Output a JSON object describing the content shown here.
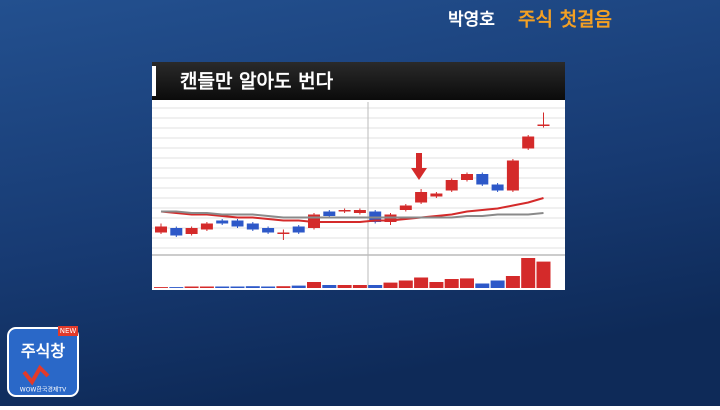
{
  "header": {
    "host": "박영호",
    "program": "주식 첫걸음"
  },
  "logo": {
    "badge": "NEW",
    "name": "주식창",
    "channel": "WOW한국경제TV"
  },
  "chart_data": {
    "type": "candlestick",
    "title": "캔들만 알아도 번다",
    "open": [
      15,
      18,
      14,
      17,
      23,
      23,
      21,
      18,
      14,
      19,
      18,
      29,
      29,
      28,
      29,
      22,
      30,
      35,
      39,
      43,
      50,
      54,
      47,
      43,
      71,
      86
    ],
    "high": [
      21,
      19,
      19,
      22,
      24,
      24,
      22,
      19,
      17,
      20,
      28,
      30,
      31,
      31,
      30,
      28,
      34,
      44,
      42,
      51,
      55,
      55,
      48,
      64,
      80,
      95
    ],
    "low": [
      14,
      12,
      13,
      16,
      20,
      18,
      16,
      14,
      10,
      14,
      17,
      25,
      28,
      27,
      21,
      20,
      29,
      34,
      38,
      42,
      49,
      46,
      42,
      42,
      70,
      85
    ],
    "close": [
      19,
      13,
      18,
      21,
      21,
      19,
      17,
      15,
      15,
      15,
      27,
      26,
      30,
      30,
      22,
      27,
      33,
      42,
      41,
      50,
      54,
      47,
      43,
      63,
      79,
      87
    ],
    "volume": [
      3,
      3,
      5,
      5,
      5,
      5,
      6,
      5,
      6,
      8,
      20,
      10,
      10,
      10,
      10,
      18,
      25,
      35,
      20,
      30,
      32,
      15,
      25,
      40,
      100,
      88
    ],
    "ylim": [
      0,
      100
    ],
    "volume_ylim": [
      0,
      100
    ],
    "up_color": "#d42a2a",
    "down_color": "#2d58c8",
    "moving_averages": [
      {
        "color": "#d42a2a",
        "values": [
          29,
          28,
          27,
          27,
          26,
          25,
          25,
          24,
          23,
          23,
          22,
          22,
          22,
          22,
          23,
          23,
          24,
          25,
          26,
          27,
          29,
          30,
          31,
          33,
          35,
          38
        ]
      },
      {
        "color": "#8a8a8a",
        "values": [
          29,
          29,
          28,
          28,
          27,
          27,
          27,
          26,
          25,
          25,
          25,
          25,
          25,
          25,
          25,
          25,
          25,
          25,
          25,
          25,
          26,
          26,
          27,
          27,
          27,
          28
        ]
      }
    ]
  }
}
